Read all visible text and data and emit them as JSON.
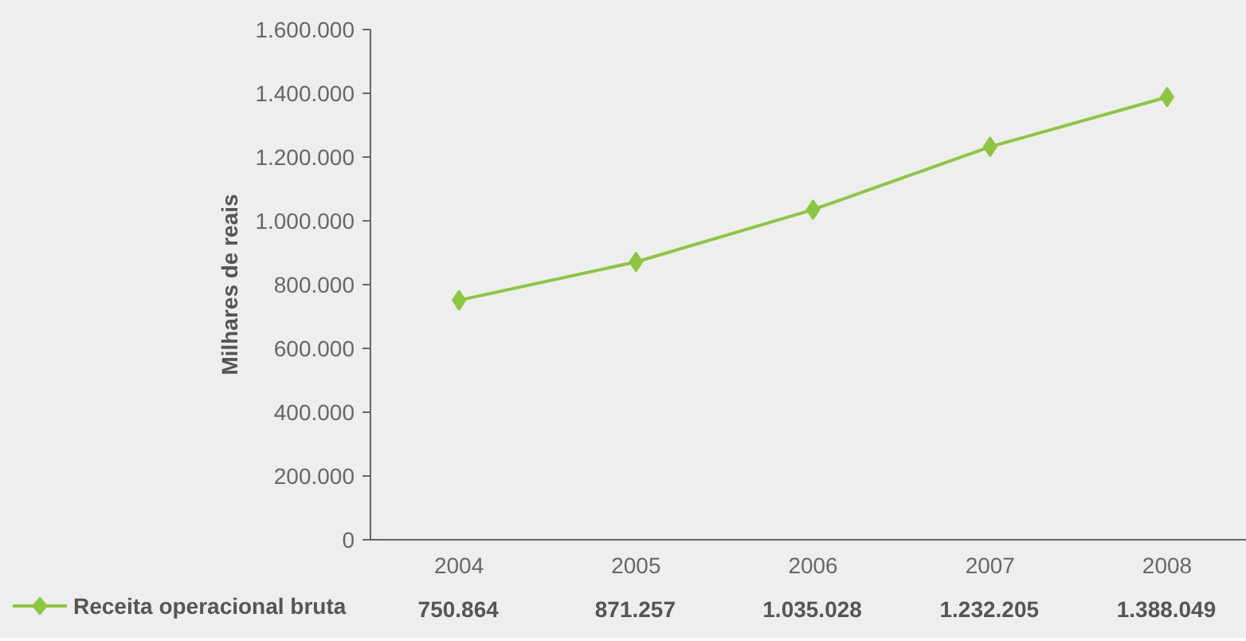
{
  "chart_data": {
    "type": "line",
    "ylabel": "Milhares de reais",
    "categories": [
      "2004",
      "2005",
      "2006",
      "2007",
      "2008"
    ],
    "series": [
      {
        "name": "Receita operacional bruta",
        "color": "#8dc63f",
        "values": [
          750864,
          871257,
          1035028,
          1232205,
          1388049
        ],
        "value_labels": [
          "750.864",
          "871.257",
          "1.035.028",
          "1.232.205",
          "1.388.049"
        ]
      }
    ],
    "ylim": [
      0,
      1600000
    ],
    "yticks": [
      {
        "value": 0,
        "label": "0"
      },
      {
        "value": 200000,
        "label": "200.000"
      },
      {
        "value": 400000,
        "label": "400.000"
      },
      {
        "value": 600000,
        "label": "600.000"
      },
      {
        "value": 800000,
        "label": "800.000"
      },
      {
        "value": 1000000,
        "label": "1.000.000"
      },
      {
        "value": 1200000,
        "label": "1.200.000"
      },
      {
        "value": 1400000,
        "label": "1.400.000"
      },
      {
        "value": 1600000,
        "label": "1.600.000"
      }
    ],
    "marker": "diamond",
    "grid": false,
    "legend": "bottom left"
  }
}
